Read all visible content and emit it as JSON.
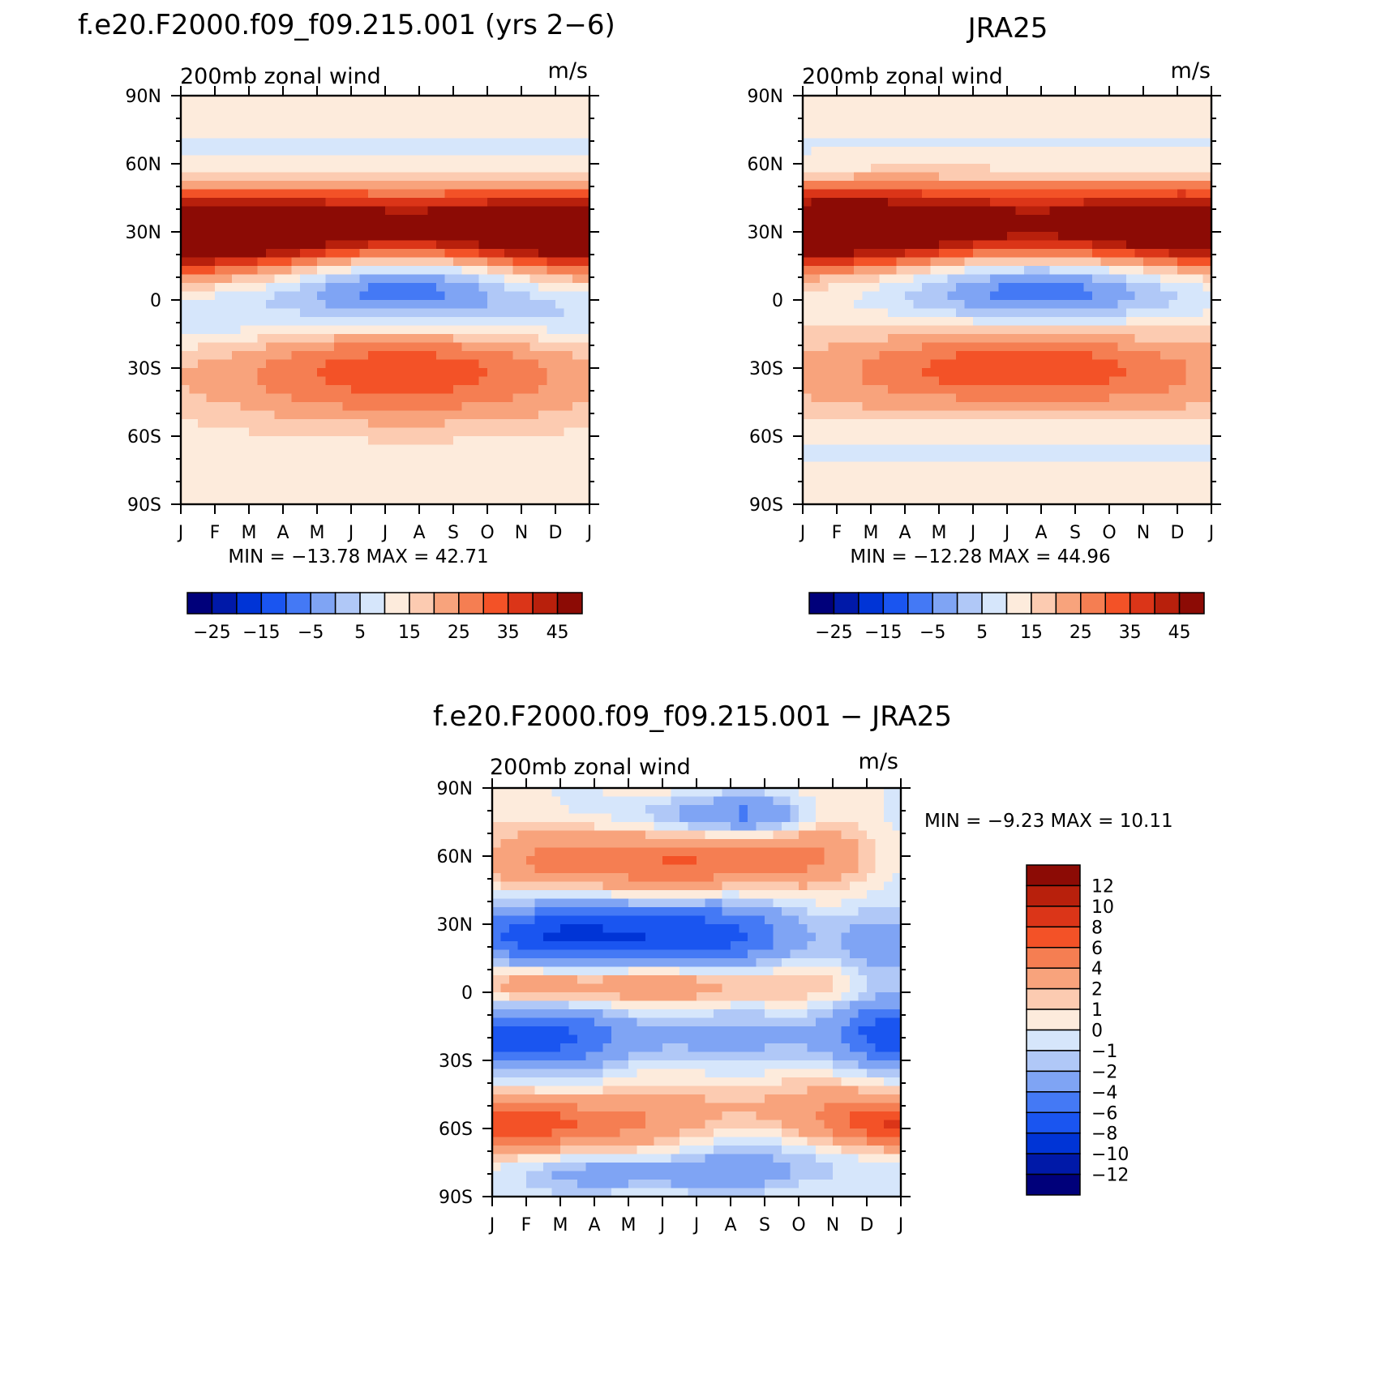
{
  "panels": [
    {
      "id": "model",
      "title": "f.e20.F2000.f09_f09.215.001 (yrs 2−6)",
      "left_string": "200mb  zonal  wind",
      "right_string": "m/s",
      "stats": "MIN  =  −13.78  MAX  =    42.71"
    },
    {
      "id": "obs",
      "title": "JRA25",
      "left_string": "200mb  zonal  wind",
      "right_string": "m/s",
      "stats": "MIN  =  −12.28  MAX  =    44.96"
    },
    {
      "id": "diff",
      "title": "f.e20.F2000.f09_f09.215.001  −  JRA25",
      "left_string": "200mb  zonal  wind",
      "right_string": "m/s",
      "stats": "MIN  =    −9.23  MAX  =    10.11"
    }
  ],
  "chart_data": [
    {
      "type": "heatmap",
      "panel": "model",
      "title": "f.e20.F2000.f09_f09.215.001 (yrs 2−6)",
      "variable": "200mb  zonal  wind",
      "units": "m/s",
      "x_tick_labels": [
        "J",
        "F",
        "M",
        "A",
        "M",
        "J",
        "J",
        "A",
        "S",
        "O",
        "N",
        "D",
        "J"
      ],
      "y_tick_labels": [
        "90N",
        "60N",
        "30N",
        "0",
        "30S",
        "60S",
        "90S"
      ],
      "y_tick_values": [
        90,
        60,
        30,
        0,
        -30,
        -60,
        -90
      ],
      "ylim": [
        -90,
        90
      ],
      "min": -13.78,
      "max": 42.71,
      "colorbar_labels": [
        "−25",
        "−15",
        "−5",
        "5",
        "15",
        "25",
        "35",
        "45"
      ],
      "blobs": [
        {
          "month": 0.5,
          "lat": 30,
          "dlon": 4.5,
          "dlat": 13,
          "amp": 42
        },
        {
          "month": 12.2,
          "lat": 30,
          "dlon": 3.5,
          "dlat": 13,
          "amp": 40
        },
        {
          "month": 6.3,
          "lat": 35,
          "dlon": 5.5,
          "dlat": 11,
          "amp": 10
        },
        {
          "month": 6.5,
          "lat": 7,
          "dlon": 2.8,
          "dlat": 13,
          "amp": -26
        },
        {
          "month": 6.5,
          "lat": -29,
          "dlon": 3.5,
          "dlat": 13,
          "amp": 15
        },
        {
          "month": 3.5,
          "lat": -52,
          "dlon": 4.0,
          "dlat": 12,
          "amp": 6
        },
        {
          "month": 10.0,
          "lat": -52,
          "dlon": 4.0,
          "dlat": 12,
          "amp": 6
        },
        {
          "month": 12.0,
          "lat": -10,
          "dlon": 2.0,
          "dlat": 10,
          "amp": -8
        },
        {
          "month": 0.5,
          "lat": -10,
          "dlon": 2.0,
          "dlat": 10,
          "amp": -8
        }
      ]
    },
    {
      "type": "heatmap",
      "panel": "obs",
      "title": "JRA25",
      "variable": "200mb  zonal  wind",
      "units": "m/s",
      "x_tick_labels": [
        "J",
        "F",
        "M",
        "A",
        "M",
        "J",
        "J",
        "A",
        "S",
        "O",
        "N",
        "D",
        "J"
      ],
      "y_tick_labels": [
        "90N",
        "60N",
        "30N",
        "0",
        "30S",
        "60S",
        "90S"
      ],
      "y_tick_values": [
        90,
        60,
        30,
        0,
        -30,
        -60,
        -90
      ],
      "ylim": [
        -90,
        90
      ],
      "min": -12.28,
      "max": 44.96,
      "colorbar_labels": [
        "−25",
        "−15",
        "−5",
        "5",
        "15",
        "25",
        "35",
        "45"
      ],
      "blobs": [
        {
          "month": 0.5,
          "lat": 31,
          "dlon": 4.5,
          "dlat": 12,
          "amp": 45
        },
        {
          "month": 12.2,
          "lat": 31,
          "dlon": 3.5,
          "dlat": 12,
          "amp": 41
        },
        {
          "month": 6.3,
          "lat": 45,
          "dlon": 5.5,
          "dlat": 11,
          "amp": 8
        },
        {
          "month": 7.0,
          "lat": 6,
          "dlon": 3.2,
          "dlat": 12,
          "amp": -24
        },
        {
          "month": 6.5,
          "lat": -30,
          "dlon": 3.5,
          "dlat": 13,
          "amp": 17
        },
        {
          "month": 1.0,
          "lat": -48,
          "dlon": 3.0,
          "dlat": 10,
          "amp": 5
        },
        {
          "month": 11.5,
          "lat": -48,
          "dlon": 3.0,
          "dlat": 10,
          "amp": 5
        }
      ]
    },
    {
      "type": "heatmap",
      "panel": "diff",
      "title": "f.e20.F2000.f09_f09.215.001  −  JRA25",
      "variable": "200mb  zonal  wind",
      "units": "m/s",
      "x_tick_labels": [
        "J",
        "F",
        "M",
        "A",
        "M",
        "J",
        "J",
        "A",
        "S",
        "O",
        "N",
        "D",
        "J"
      ],
      "y_tick_labels": [
        "90N",
        "60N",
        "30N",
        "0",
        "30S",
        "60S",
        "90S"
      ],
      "y_tick_values": [
        90,
        60,
        30,
        0,
        -30,
        -60,
        -90
      ],
      "ylim": [
        -90,
        90
      ],
      "min": -9.23,
      "max": 10.11,
      "colorbar_labels": [
        "12",
        "10",
        "8",
        "6",
        "4",
        "2",
        "1",
        "0",
        "−1",
        "−2",
        "−4",
        "−6",
        "−8",
        "−10",
        "−12"
      ],
      "blobs": [
        {
          "month": 2.0,
          "lat": 58,
          "dlon": 1.5,
          "dlat": 10,
          "amp": 5
        },
        {
          "month": 6.0,
          "lat": 57,
          "dlon": 2.0,
          "dlat": 9,
          "amp": 6
        },
        {
          "month": 9.5,
          "lat": 60,
          "dlon": 1.5,
          "dlat": 10,
          "amp": 3
        },
        {
          "month": 6.0,
          "lat": 78,
          "dlon": 1.5,
          "dlat": 6,
          "amp": -3
        },
        {
          "month": 8.0,
          "lat": 78,
          "dlon": 1.0,
          "dlat": 6,
          "amp": -3
        },
        {
          "month": 1.0,
          "lat": 25,
          "dlon": 2.0,
          "dlat": 10,
          "amp": -6
        },
        {
          "month": 5.5,
          "lat": 25,
          "dlon": 2.5,
          "dlat": 10,
          "amp": -8
        },
        {
          "month": 11.5,
          "lat": 20,
          "dlon": 1.0,
          "dlat": 10,
          "amp": -3
        },
        {
          "month": 1.5,
          "lat": 3,
          "dlon": 1.5,
          "dlat": 6,
          "amp": 4
        },
        {
          "month": 5.0,
          "lat": 3,
          "dlon": 1.5,
          "dlat": 6,
          "amp": 3.5
        },
        {
          "month": 8.5,
          "lat": 3,
          "dlon": 1.5,
          "dlat": 6,
          "amp": 2
        },
        {
          "month": 0.5,
          "lat": -20,
          "dlon": 2.0,
          "dlat": 10,
          "amp": -7
        },
        {
          "month": 12.0,
          "lat": -18,
          "dlon": 1.5,
          "dlat": 10,
          "amp": -7
        },
        {
          "month": 6.0,
          "lat": -20,
          "dlon": 3.0,
          "dlat": 8,
          "amp": -2
        },
        {
          "month": 1.0,
          "lat": -58,
          "dlon": 2.5,
          "dlat": 8,
          "amp": 7
        },
        {
          "month": 12.0,
          "lat": -58,
          "dlon": 1.5,
          "dlat": 8,
          "amp": 8
        },
        {
          "month": 8.0,
          "lat": -50,
          "dlon": 3.0,
          "dlat": 9,
          "amp": 2
        },
        {
          "month": 5.0,
          "lat": -80,
          "dlon": 3.0,
          "dlat": 5,
          "amp": -3
        },
        {
          "month": 8.5,
          "lat": -72,
          "dlon": 2.5,
          "dlat": 7,
          "amp": -1.5
        }
      ]
    }
  ],
  "colormaps": {
    "full_field": {
      "levels": [
        -30,
        -25,
        -20,
        -15,
        -10,
        -5,
        0,
        5,
        10,
        15,
        20,
        25,
        30,
        35,
        40,
        45,
        50
      ],
      "colors": [
        "#00007a",
        "#0019a8",
        "#0034d6",
        "#1a55f0",
        "#4479f5",
        "#7fa4f4",
        "#b0c8f7",
        "#d6e6fb",
        "#fdebdc",
        "#fccbb1",
        "#f8a37c",
        "#f57e52",
        "#f35227",
        "#db3518",
        "#b8200c",
        "#8c0b05"
      ]
    },
    "difference": {
      "levels": [
        -14,
        -12,
        -10,
        -8,
        -6,
        -4,
        -2,
        -1,
        0,
        1,
        2,
        4,
        6,
        8,
        10,
        12,
        14
      ],
      "colors": [
        "#00007a",
        "#0019a8",
        "#0034d6",
        "#1a55f0",
        "#4479f5",
        "#7fa4f4",
        "#b0c8f7",
        "#d6e6fb",
        "#fdebdc",
        "#fccbb1",
        "#f8a37c",
        "#f57e52",
        "#f35227",
        "#db3518",
        "#b8200c",
        "#8c0b05"
      ]
    }
  }
}
